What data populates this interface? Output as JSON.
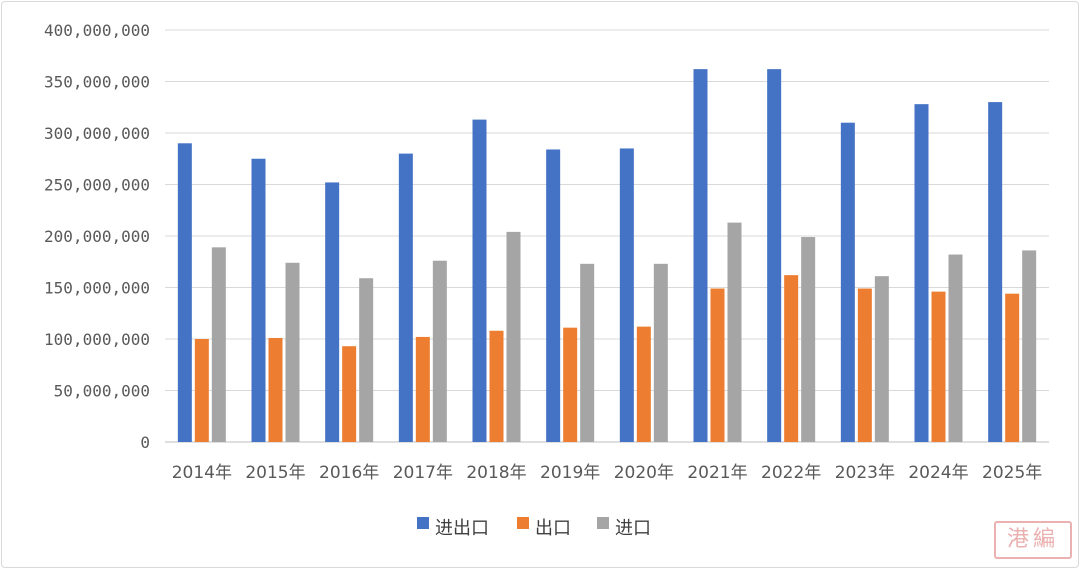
{
  "chart_data": {
    "type": "bar",
    "title": "",
    "xlabel": "",
    "ylabel": "",
    "ylim": [
      0,
      400000000
    ],
    "yticks": [
      "0",
      "50,000,000",
      "100,000,000",
      "150,000,000",
      "200,000,000",
      "250,000,000",
      "300,000,000",
      "350,000,000",
      "400,000,000"
    ],
    "grid": true,
    "legend_position": "bottom",
    "categories": [
      "2014年",
      "2015年",
      "2016年",
      "2017年",
      "2018年",
      "2019年",
      "2020年",
      "2021年",
      "2022年",
      "2023年",
      "2024年",
      "2025年"
    ],
    "series": [
      {
        "name": "进出口",
        "color": "#4472c4",
        "values": [
          290000000,
          275000000,
          252000000,
          280000000,
          313000000,
          284000000,
          285000000,
          362000000,
          362000000,
          310000000,
          328000000,
          330000000
        ]
      },
      {
        "name": "出口",
        "color": "#ed7d31",
        "values": [
          100000000,
          101000000,
          93000000,
          102000000,
          108000000,
          111000000,
          112000000,
          149000000,
          162000000,
          149000000,
          146000000,
          144000000
        ]
      },
      {
        "name": "进口",
        "color": "#a5a5a5",
        "values": [
          189000000,
          174000000,
          159000000,
          176000000,
          204000000,
          173000000,
          173000000,
          213000000,
          199000000,
          161000000,
          182000000,
          186000000
        ]
      }
    ]
  },
  "stamp_text": "港編"
}
